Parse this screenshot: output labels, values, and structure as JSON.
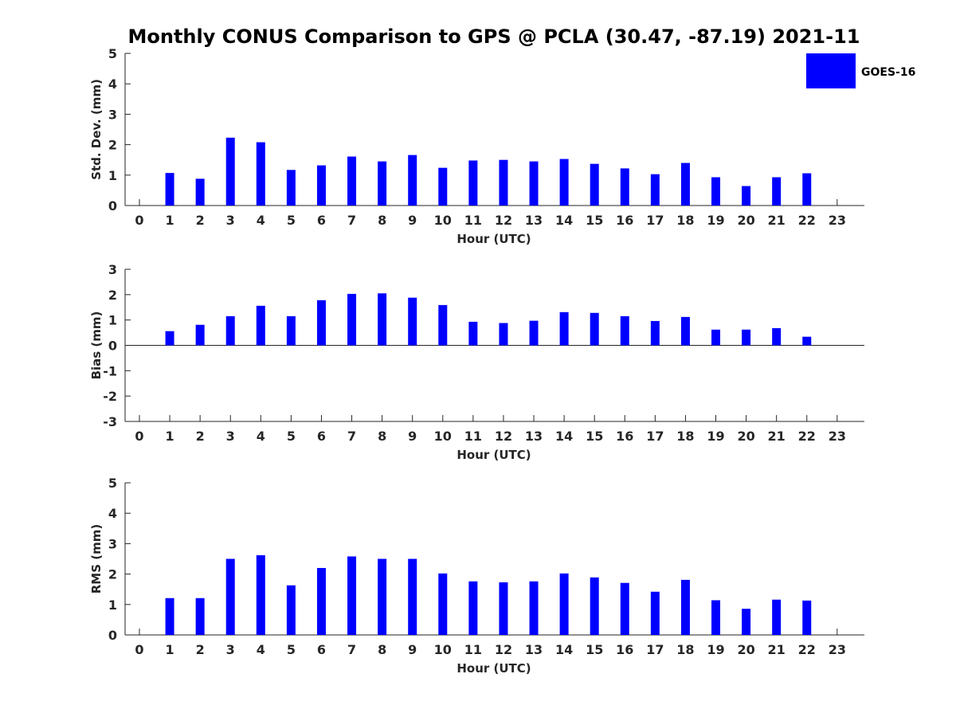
{
  "title": "Monthly CONUS Comparison to GPS @ PCLA (30.47, -87.19) 2021-11",
  "legend": {
    "label": "GOES-16",
    "color": "#0000ff",
    "placement": "top-right"
  },
  "chart_data": [
    {
      "type": "bar",
      "ylabel": "Std. Dev. (mm)",
      "xlabel": "Hour (UTC)",
      "ylim": [
        0,
        5
      ],
      "yticks": [
        "0",
        "1",
        "2",
        "3",
        "4",
        "5"
      ],
      "categories": [
        "0",
        "1",
        "2",
        "3",
        "4",
        "5",
        "6",
        "7",
        "8",
        "9",
        "10",
        "11",
        "12",
        "13",
        "14",
        "15",
        "16",
        "17",
        "18",
        "19",
        "20",
        "21",
        "22",
        "23"
      ],
      "series": [
        {
          "name": "GOES-16",
          "values": [
            null,
            1.07,
            0.88,
            2.23,
            2.08,
            1.17,
            1.32,
            1.61,
            1.45,
            1.66,
            1.24,
            1.48,
            1.5,
            1.45,
            1.53,
            1.37,
            1.22,
            1.03,
            1.4,
            0.93,
            0.64,
            0.93,
            1.06,
            null
          ]
        }
      ],
      "grid": false
    },
    {
      "type": "bar",
      "ylabel": "Bias (mm)",
      "xlabel": "Hour (UTC)",
      "ylim": [
        -3,
        3
      ],
      "yticks": [
        "-3",
        "-2",
        "-1",
        "0",
        "1",
        "2",
        "3"
      ],
      "categories": [
        "0",
        "1",
        "2",
        "3",
        "4",
        "5",
        "6",
        "7",
        "8",
        "9",
        "10",
        "11",
        "12",
        "13",
        "14",
        "15",
        "16",
        "17",
        "18",
        "19",
        "20",
        "21",
        "22",
        "23"
      ],
      "series": [
        {
          "name": "GOES-16",
          "values": [
            null,
            0.56,
            0.81,
            1.15,
            1.56,
            1.15,
            1.78,
            2.03,
            2.05,
            1.88,
            1.59,
            0.93,
            0.88,
            0.97,
            1.31,
            1.28,
            1.15,
            0.96,
            1.12,
            0.62,
            0.62,
            0.68,
            0.34,
            null
          ]
        }
      ],
      "zero_line": true,
      "grid": false
    },
    {
      "type": "bar",
      "ylabel": "RMS (mm)",
      "xlabel": "Hour (UTC)",
      "ylim": [
        0,
        5
      ],
      "yticks": [
        "0",
        "1",
        "2",
        "3",
        "4",
        "5"
      ],
      "categories": [
        "0",
        "1",
        "2",
        "3",
        "4",
        "5",
        "6",
        "7",
        "8",
        "9",
        "10",
        "11",
        "12",
        "13",
        "14",
        "15",
        "16",
        "17",
        "18",
        "19",
        "20",
        "21",
        "22",
        "23"
      ],
      "series": [
        {
          "name": "GOES-16",
          "values": [
            null,
            1.21,
            1.21,
            2.5,
            2.62,
            1.63,
            2.2,
            2.58,
            2.5,
            2.5,
            2.02,
            1.76,
            1.73,
            1.76,
            2.02,
            1.89,
            1.71,
            1.42,
            1.81,
            1.14,
            0.86,
            1.16,
            1.13,
            null
          ]
        }
      ],
      "grid": false
    }
  ]
}
